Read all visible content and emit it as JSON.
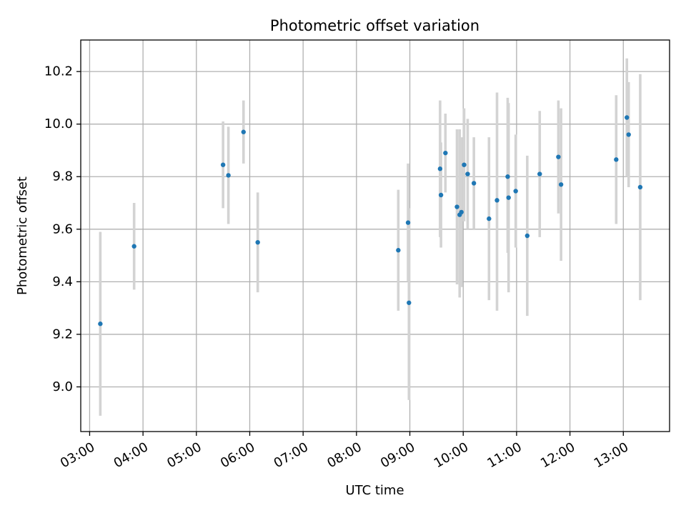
{
  "chart_data": {
    "type": "scatter",
    "title": "Photometric offset variation",
    "xlabel": "UTC time",
    "ylabel": "Photometric offset",
    "x_unit": "hours UTC",
    "xlim": [
      "02:50",
      "13:52"
    ],
    "ylim": [
      8.83,
      10.32
    ],
    "x_ticks": [
      "03:00",
      "04:00",
      "05:00",
      "06:00",
      "07:00",
      "08:00",
      "09:00",
      "10:00",
      "11:00",
      "12:00",
      "13:00"
    ],
    "y_ticks": [
      "9.0",
      "9.2",
      "9.4",
      "9.6",
      "9.8",
      "10.0",
      "10.2"
    ],
    "x_tick_rotation": 30,
    "grid": true,
    "legend": "none",
    "marker_color": "#1f77b4",
    "errorbar_color": "#d3d3d3",
    "series": [
      {
        "points": [
          {
            "t": "03:12",
            "y": 9.24,
            "lo": 8.89,
            "hi": 9.59
          },
          {
            "t": "03:50",
            "y": 9.535,
            "lo": 9.37,
            "hi": 9.7
          },
          {
            "t": "05:30",
            "y": 9.845,
            "lo": 9.68,
            "hi": 10.01
          },
          {
            "t": "05:36",
            "y": 9.805,
            "lo": 9.62,
            "hi": 9.99
          },
          {
            "t": "05:53",
            "y": 9.97,
            "lo": 9.85,
            "hi": 10.09
          },
          {
            "t": "06:09",
            "y": 9.55,
            "lo": 9.36,
            "hi": 9.74
          },
          {
            "t": "08:47",
            "y": 9.52,
            "lo": 9.29,
            "hi": 9.75
          },
          {
            "t": "08:58",
            "y": 9.625,
            "lo": 9.4,
            "hi": 9.85
          },
          {
            "t": "08:59",
            "y": 9.32,
            "lo": 8.95,
            "hi": 9.68
          },
          {
            "t": "09:34",
            "y": 9.83,
            "lo": 9.57,
            "hi": 10.09
          },
          {
            "t": "09:35",
            "y": 9.73,
            "lo": 9.53,
            "hi": 9.93
          },
          {
            "t": "09:40",
            "y": 9.89,
            "lo": 9.74,
            "hi": 10.04
          },
          {
            "t": "09:53",
            "y": 9.685,
            "lo": 9.39,
            "hi": 9.98
          },
          {
            "t": "09:56",
            "y": 9.655,
            "lo": 9.34,
            "hi": 9.98
          },
          {
            "t": "09:58",
            "y": 9.665,
            "lo": 9.38,
            "hi": 9.95
          },
          {
            "t": "10:01",
            "y": 9.845,
            "lo": 9.63,
            "hi": 10.06
          },
          {
            "t": "10:05",
            "y": 9.81,
            "lo": 9.6,
            "hi": 10.02
          },
          {
            "t": "10:12",
            "y": 9.775,
            "lo": 9.6,
            "hi": 9.95
          },
          {
            "t": "10:29",
            "y": 9.64,
            "lo": 9.33,
            "hi": 9.95
          },
          {
            "t": "10:38",
            "y": 9.71,
            "lo": 9.29,
            "hi": 10.12
          },
          {
            "t": "10:50",
            "y": 9.8,
            "lo": 9.51,
            "hi": 10.1
          },
          {
            "t": "10:51",
            "y": 9.72,
            "lo": 9.36,
            "hi": 10.08
          },
          {
            "t": "10:59",
            "y": 9.745,
            "lo": 9.53,
            "hi": 9.96
          },
          {
            "t": "11:12",
            "y": 9.575,
            "lo": 9.27,
            "hi": 9.88
          },
          {
            "t": "11:26",
            "y": 9.81,
            "lo": 9.57,
            "hi": 10.05
          },
          {
            "t": "11:47",
            "y": 9.875,
            "lo": 9.66,
            "hi": 10.09
          },
          {
            "t": "11:50",
            "y": 9.77,
            "lo": 9.48,
            "hi": 10.06
          },
          {
            "t": "12:52",
            "y": 9.865,
            "lo": 9.62,
            "hi": 10.11
          },
          {
            "t": "13:04",
            "y": 10.025,
            "lo": 9.8,
            "hi": 10.25
          },
          {
            "t": "13:06",
            "y": 9.96,
            "lo": 9.76,
            "hi": 10.16
          },
          {
            "t": "13:19",
            "y": 9.76,
            "lo": 9.33,
            "hi": 10.19
          }
        ]
      }
    ]
  }
}
